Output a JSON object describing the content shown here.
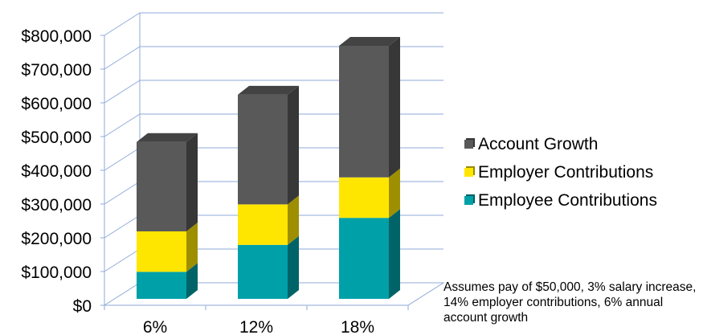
{
  "chart_data": {
    "type": "bar",
    "stacked": true,
    "three_d": true,
    "categories": [
      "6%",
      "12%",
      "18%"
    ],
    "series": [
      {
        "name": "Employee Contributions",
        "values": [
          80000,
          160000,
          240000
        ],
        "color": "#00a0a8"
      },
      {
        "name": "Employer Contributions",
        "values": [
          120000,
          120000,
          120000
        ],
        "color": "#ffe600"
      },
      {
        "name": "Account Growth",
        "values": [
          265000,
          325000,
          390000
        ],
        "color": "#595959"
      }
    ],
    "ylim": [
      0,
      800000
    ],
    "y_ticks": [
      "$0",
      "$100,000",
      "$200,000",
      "$300,000",
      "$400,000",
      "$500,000",
      "$600,000",
      "$700,000",
      "$800,000"
    ],
    "grid": true,
    "legend_position": "right",
    "legend_order": [
      "Account Growth",
      "Employer Contributions",
      "Employee Contributions"
    ],
    "gridline_color": "#8faad9",
    "title": "",
    "xlabel": "",
    "ylabel": ""
  },
  "note": "Assumes pay of $50,000, 3% salary increase, 14% employer contributions, 6% annual account growth"
}
